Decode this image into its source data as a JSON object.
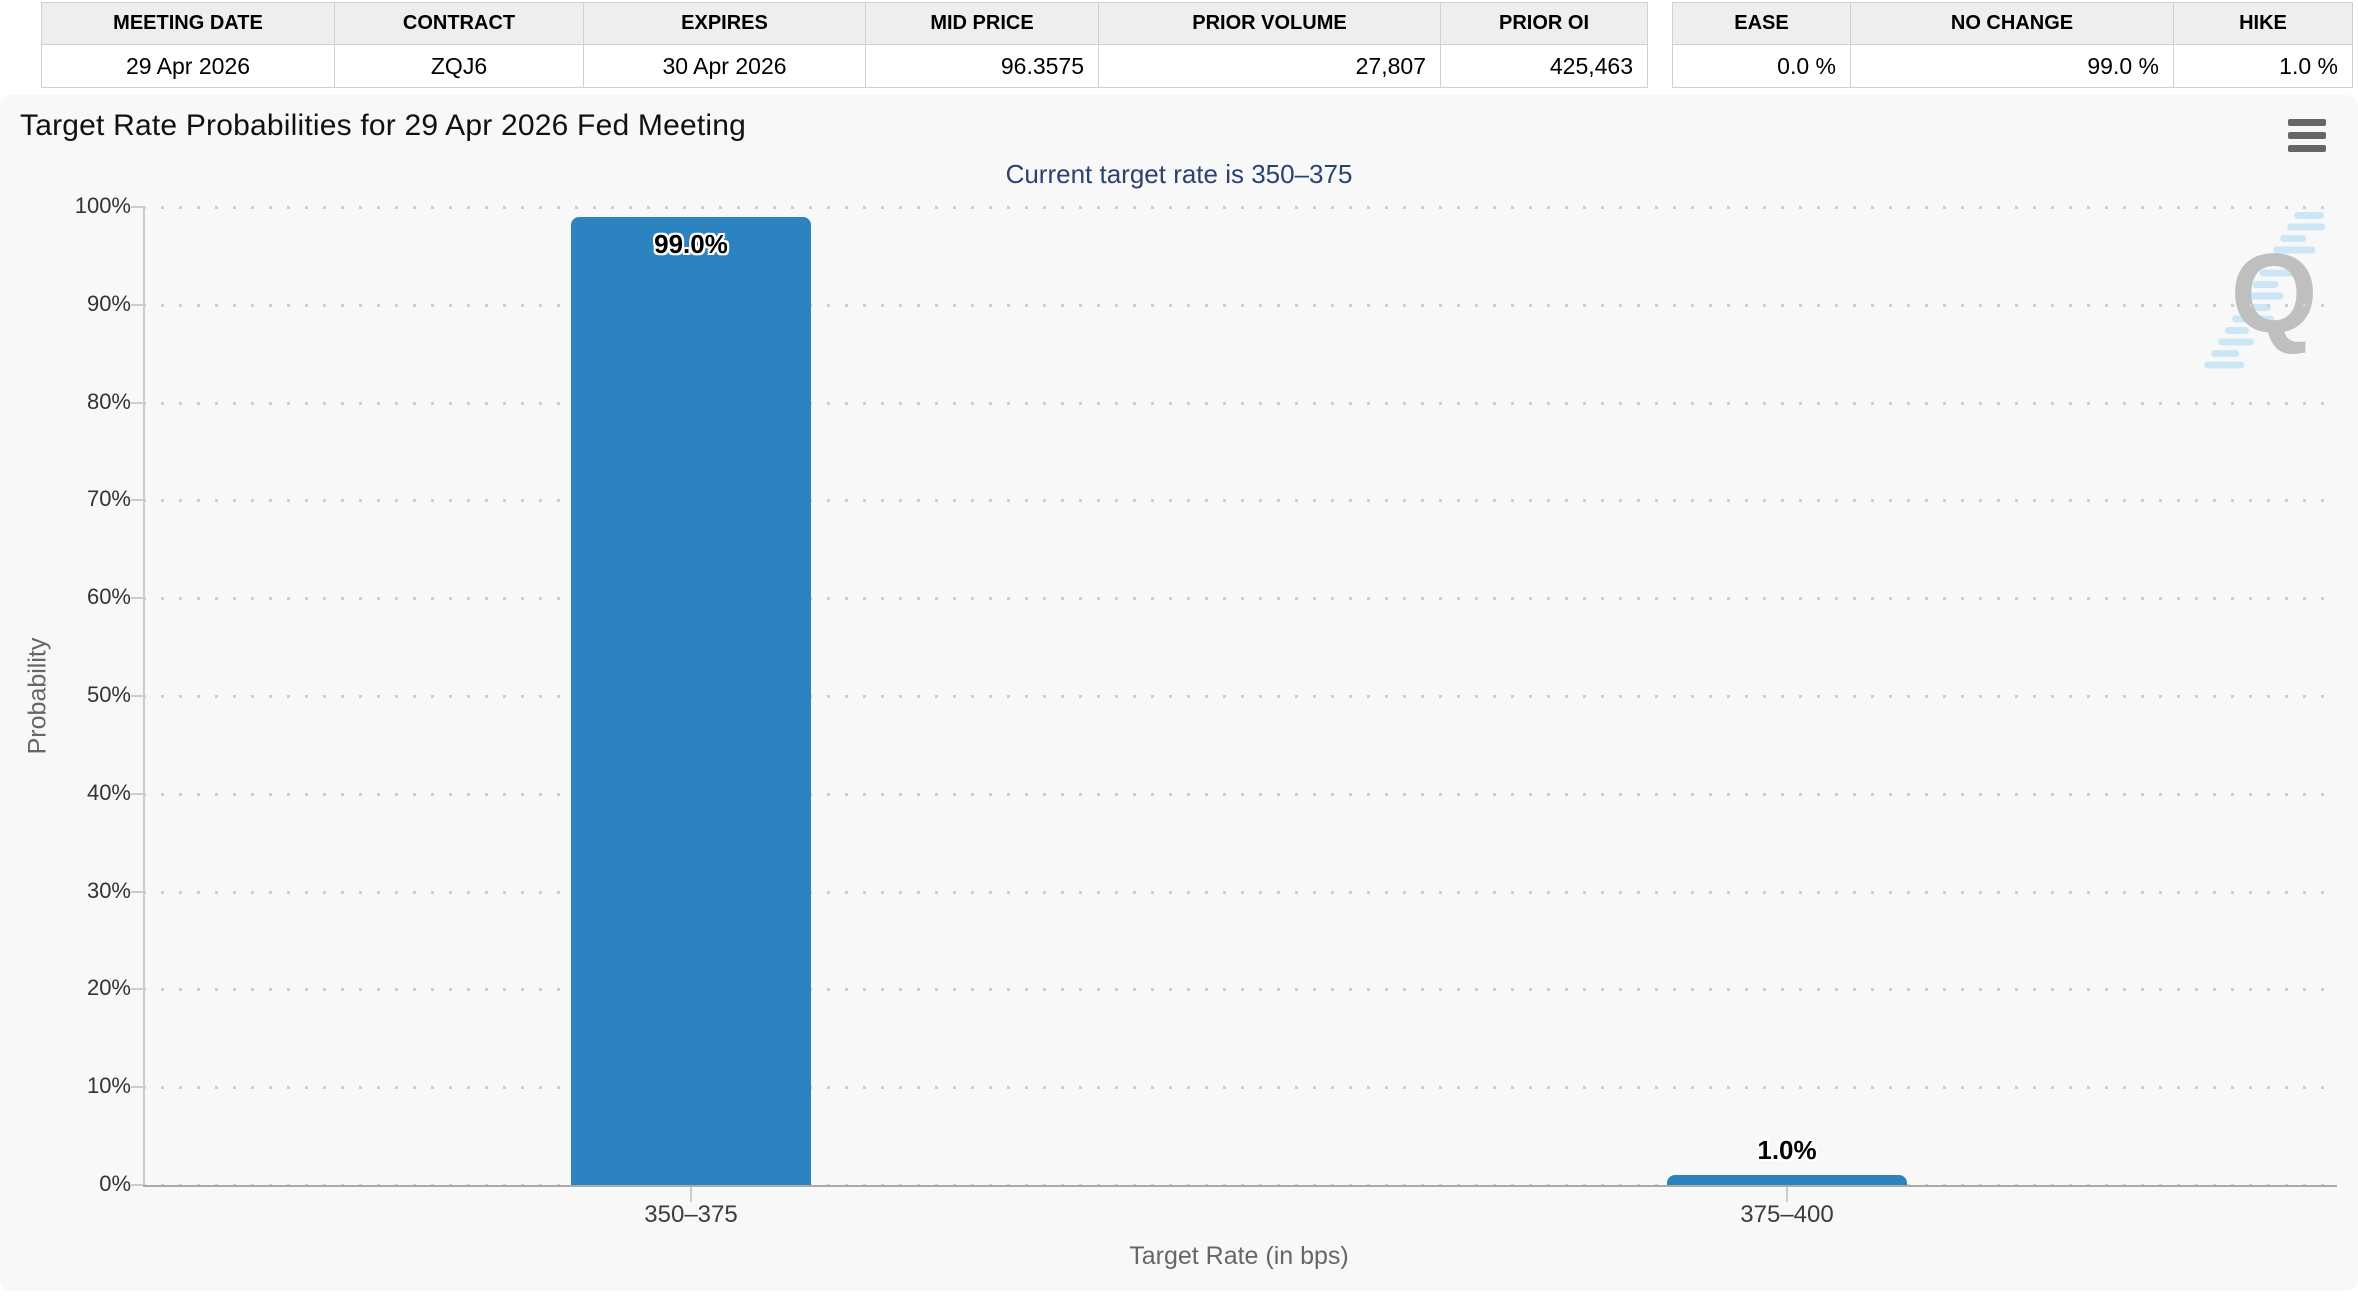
{
  "contract_table": {
    "headers": [
      "MEETING DATE",
      "CONTRACT",
      "EXPIRES",
      "MID PRICE",
      "PRIOR VOLUME",
      "PRIOR OI"
    ],
    "row": [
      "29 Apr 2026",
      "ZQJ6",
      "30 Apr 2026",
      "96.3575",
      "27,807",
      "425,463"
    ]
  },
  "action_table": {
    "headers": [
      "EASE",
      "NO CHANGE",
      "HIKE"
    ],
    "row": [
      "0.0 %",
      "99.0 %",
      "1.0 %"
    ]
  },
  "chart_data": {
    "type": "bar",
    "title": "Target Rate Probabilities for 29 Apr 2026 Fed Meeting",
    "subtitle": "Current target rate is 350–375",
    "categories": [
      "350–375",
      "375–400"
    ],
    "values": [
      99.0,
      1.0
    ],
    "bar_labels": [
      "99.0%",
      "1.0%"
    ],
    "xlabel": "Target Rate (in bps)",
    "ylabel": "Probability",
    "ylim": [
      0,
      100
    ],
    "ytick_step": 10,
    "ytick_suffix": "%",
    "grid": "dotted-horizontal",
    "legend": "none",
    "bar_color": "#2d83bf"
  },
  "icons": {
    "menu": "hamburger-menu-icon",
    "watermark": "quikstrike-q-watermark"
  },
  "watermark_letter": "Q",
  "colors": {
    "bar": "#2d83bf",
    "subtitle_text": "#2b4270",
    "chart_background": "#f8f8f8",
    "watermark_gray": "#bdbdbd",
    "watermark_blue": "#c9e7f6"
  }
}
